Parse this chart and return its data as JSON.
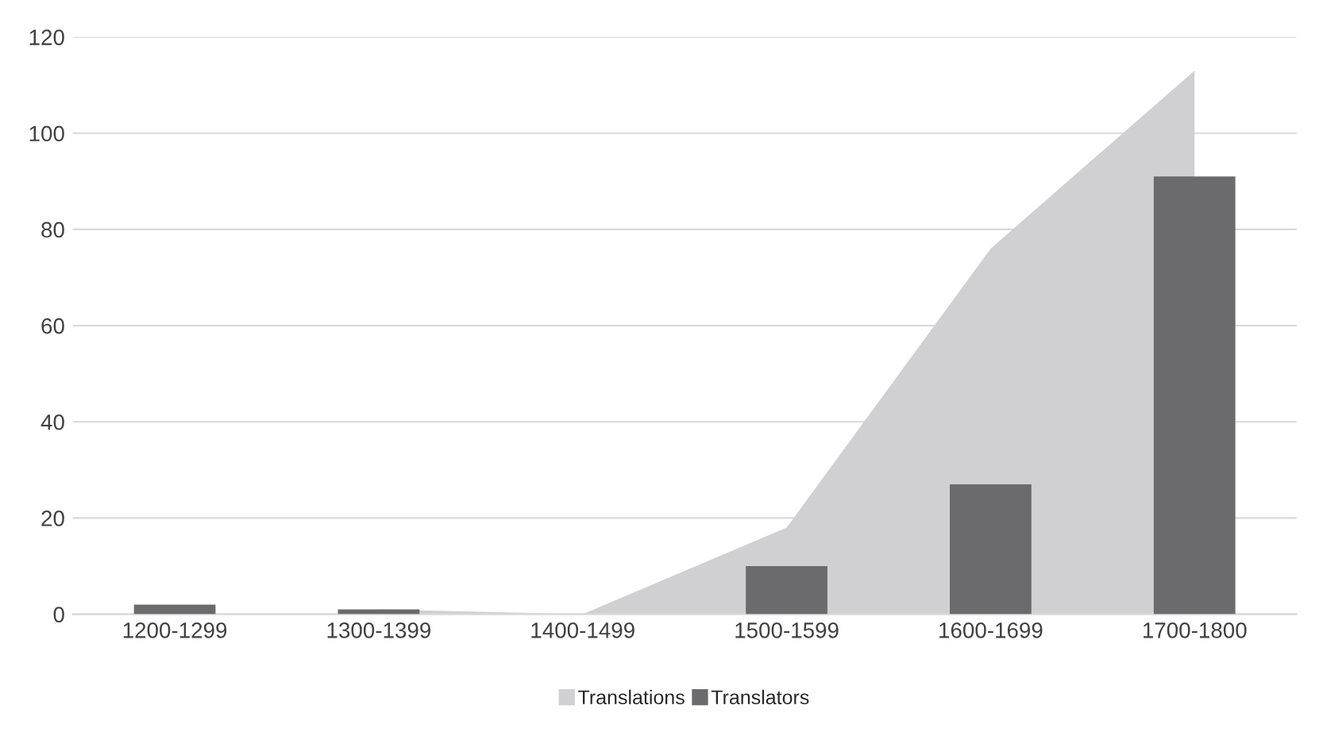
{
  "chart_data": {
    "type": "bar",
    "categories": [
      "1200-1299",
      "1300-1399",
      "1400-1499",
      "1500-1599",
      "1600-1699",
      "1700-1800"
    ],
    "series": [
      {
        "name": "Translations",
        "type": "area",
        "color": "#d0d0d2",
        "values": [
          null,
          1,
          0,
          18,
          76,
          113
        ]
      },
      {
        "name": "Translators",
        "color": "#6b6b6e",
        "values": [
          2,
          1,
          0,
          10,
          27,
          91
        ]
      }
    ],
    "ylim": [
      0,
      120
    ],
    "yticks": [
      0,
      20,
      40,
      60,
      80,
      100,
      120
    ],
    "grid": "y",
    "legend": "bottom"
  }
}
